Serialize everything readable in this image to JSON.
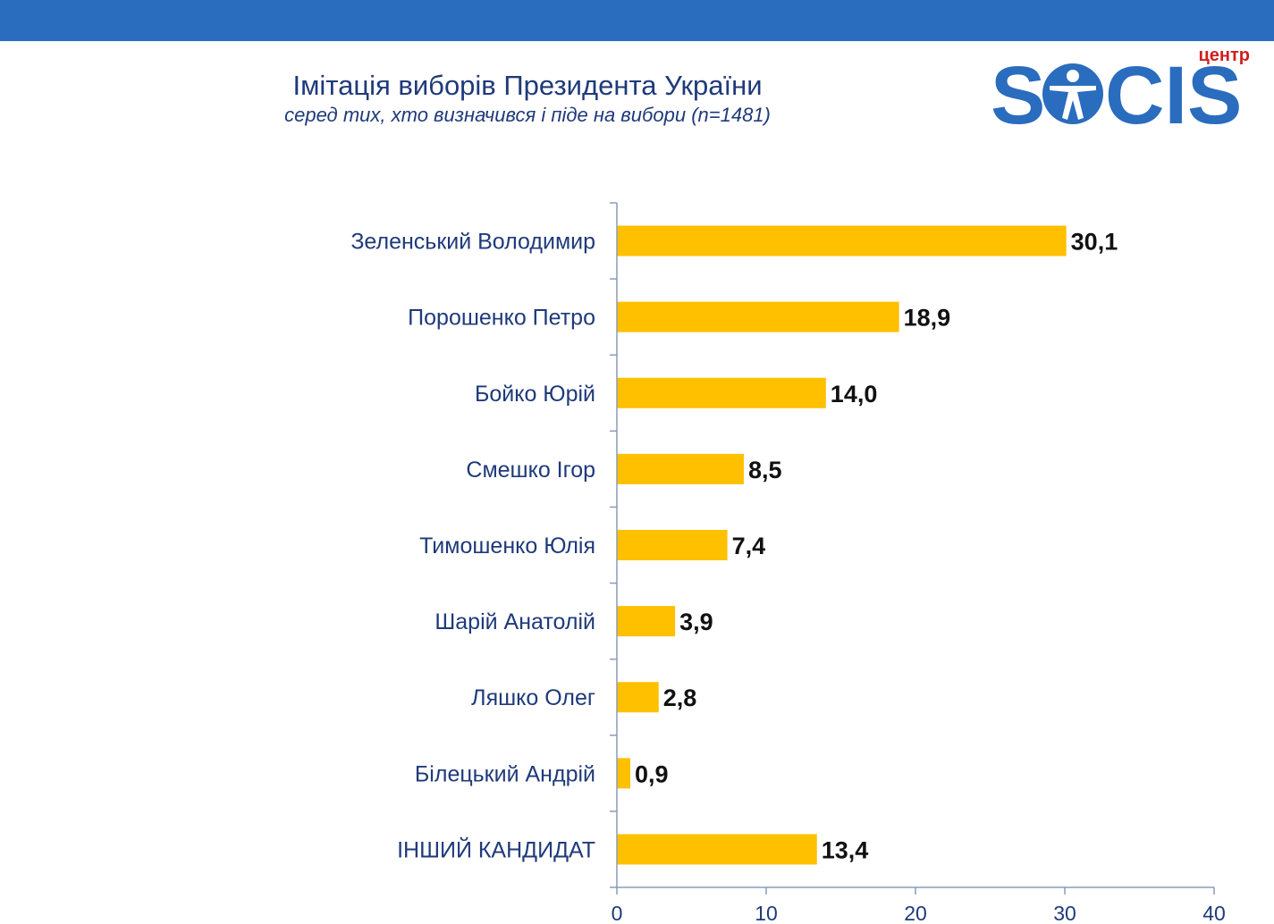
{
  "header": {
    "title": "Імітація виборів Президента України",
    "subtitle": "серед тих, хто визначився і піде на вибори (n=1481)"
  },
  "logo": {
    "top_text": "центр",
    "letters_left": "S",
    "letters_right": "CIS",
    "brand_blue": "#2a6cbd",
    "brand_red": "#d01f1f"
  },
  "colors": {
    "bar": "#ffc000",
    "axis": "#8a9bb8",
    "text": "#1f3a7a"
  },
  "chart_data": {
    "type": "bar",
    "orientation": "horizontal",
    "categories": [
      "Зеленський Володимир",
      "Порошенко Петро",
      "Бойко Юрій",
      "Смешко Ігор",
      "Тимошенко Юлія",
      "Шарій Анатолій",
      "Ляшко Олег",
      "Білецький Андрій",
      "ІНШИЙ КАНДИДАТ"
    ],
    "values": [
      30.1,
      18.9,
      14.0,
      8.5,
      7.4,
      3.9,
      2.8,
      0.9,
      13.4
    ],
    "value_labels": [
      "30,1",
      "18,9",
      "14,0",
      "8,5",
      "7,4",
      "3,9",
      "2,8",
      "0,9",
      "13,4"
    ],
    "xlim": [
      0,
      40
    ],
    "xticks": [
      "0",
      "10",
      "20",
      "30",
      "40"
    ],
    "grid": false,
    "legend": "none"
  }
}
